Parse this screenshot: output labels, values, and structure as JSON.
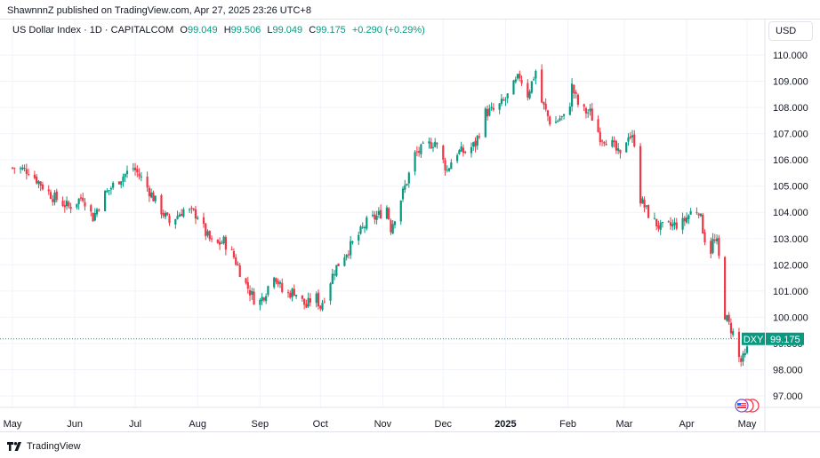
{
  "publisher": "ShawnnnZ published on TradingView.com, Apr 27, 2025 23:26 UTC+8",
  "legend": {
    "symbol": "US Dollar Index · 1D · CAPITALCOM",
    "open_label": "O",
    "open": "99.049",
    "high_label": "H",
    "high": "99.506",
    "low_label": "L",
    "low": "99.049",
    "close_label": "C",
    "close": "99.175",
    "change": "+0.290 (+0.29%)"
  },
  "currency_button": "USD",
  "price_tag": {
    "ticker": "DXY",
    "value": "99.175"
  },
  "footer": {
    "brand": "TradingView"
  },
  "colors": {
    "up": "#089981",
    "down": "#f23645",
    "axis_text": "#131722"
  },
  "chart_data": {
    "type": "candlestick",
    "title": "US Dollar Index · 1D · CAPITALCOM",
    "ylim": [
      96.6,
      110.5
    ],
    "y_ticks": [
      97,
      98,
      99,
      100,
      101,
      102,
      103,
      104,
      105,
      106,
      107,
      108,
      109,
      110
    ],
    "y_tick_labels": [
      "97.000",
      "98.000",
      "99.000",
      "100.000",
      "101.000",
      "102.000",
      "103.000",
      "104.000",
      "105.000",
      "106.000",
      "107.000",
      "108.000",
      "109.000",
      "110.000"
    ],
    "x_ticks": [
      {
        "label": "May",
        "day": 0
      },
      {
        "label": "Jun",
        "day": 31
      },
      {
        "label": "Jul",
        "day": 61
      },
      {
        "label": "Aug",
        "day": 92
      },
      {
        "label": "Sep",
        "day": 123
      },
      {
        "label": "Oct",
        "day": 153
      },
      {
        "label": "Nov",
        "day": 184
      },
      {
        "label": "Dec",
        "day": 214
      },
      {
        "label": "2025",
        "day": 245
      },
      {
        "label": "Feb",
        "day": 276
      },
      {
        "label": "Mar",
        "day": 304
      },
      {
        "label": "Apr",
        "day": 335
      },
      {
        "label": "May",
        "day": 365
      }
    ],
    "last_close": 99.175,
    "close_anchors": [
      [
        0,
        105.7
      ],
      [
        8,
        105.6
      ],
      [
        15,
        105.0
      ],
      [
        20,
        104.6
      ],
      [
        28,
        104.2
      ],
      [
        35,
        104.6
      ],
      [
        40,
        103.8
      ],
      [
        45,
        104.6
      ],
      [
        52,
        105.2
      ],
      [
        60,
        105.7
      ],
      [
        65,
        105.2
      ],
      [
        72,
        104.3
      ],
      [
        78,
        103.6
      ],
      [
        85,
        104.1
      ],
      [
        92,
        103.9
      ],
      [
        96,
        103.2
      ],
      [
        100,
        102.7
      ],
      [
        105,
        102.9
      ],
      [
        110,
        102.3
      ],
      [
        115,
        101.4
      ],
      [
        120,
        100.7
      ],
      [
        123,
        100.6
      ],
      [
        126,
        101.0
      ],
      [
        130,
        101.7
      ],
      [
        135,
        100.8
      ],
      [
        140,
        101.0
      ],
      [
        146,
        100.4
      ],
      [
        150,
        100.9
      ],
      [
        153,
        100.4
      ],
      [
        155,
        100.8
      ],
      [
        160,
        101.8
      ],
      [
        165,
        102.4
      ],
      [
        170,
        102.9
      ],
      [
        176,
        103.6
      ],
      [
        182,
        103.9
      ],
      [
        186,
        104.2
      ],
      [
        188,
        103.4
      ],
      [
        192,
        104.3
      ],
      [
        196,
        105.2
      ],
      [
        200,
        106.2
      ],
      [
        205,
        106.5
      ],
      [
        210,
        106.7
      ],
      [
        213,
        106.1
      ],
      [
        216,
        105.6
      ],
      [
        220,
        106.3
      ],
      [
        225,
        106.3
      ],
      [
        230,
        106.6
      ],
      [
        235,
        107.8
      ],
      [
        240,
        107.9
      ],
      [
        245,
        108.3
      ],
      [
        252,
        109.2
      ],
      [
        256,
        108.5
      ],
      [
        260,
        109.4
      ],
      [
        263,
        108.2
      ],
      [
        268,
        107.3
      ],
      [
        272,
        107.6
      ],
      [
        276,
        107.6
      ],
      [
        278,
        108.8
      ],
      [
        282,
        107.9
      ],
      [
        287,
        107.8
      ],
      [
        292,
        106.9
      ],
      [
        297,
        106.7
      ],
      [
        302,
        106.1
      ],
      [
        306,
        107.0
      ],
      [
        309,
        106.7
      ],
      [
        312,
        104.5
      ],
      [
        317,
        103.8
      ],
      [
        322,
        103.4
      ],
      [
        328,
        103.5
      ],
      [
        333,
        103.6
      ],
      [
        337,
        104.0
      ],
      [
        341,
        104.1
      ],
      [
        344,
        103.0
      ],
      [
        346,
        102.2
      ],
      [
        348,
        102.9
      ],
      [
        350,
        102.8
      ],
      [
        352,
        101.7
      ],
      [
        354,
        100.1
      ],
      [
        356,
        99.7
      ],
      [
        358,
        99.4
      ],
      [
        360,
        98.6
      ],
      [
        362,
        98.3
      ],
      [
        364,
        98.5
      ],
      [
        366,
        99.0
      ],
      [
        367,
        99.175
      ]
    ]
  }
}
